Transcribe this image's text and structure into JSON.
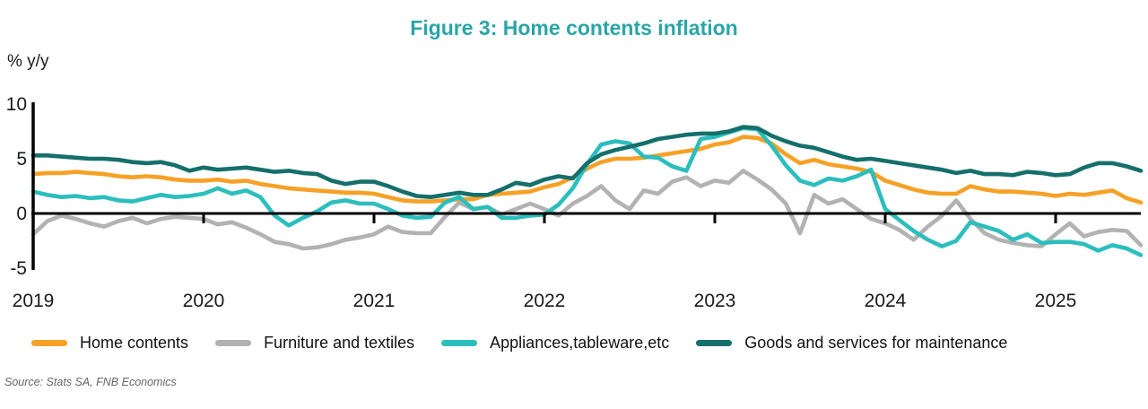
{
  "title": "Figure 3: Home contents inflation",
  "y_axis_label": "% y/y",
  "source": "Source: Stats SA, FNB Economics",
  "colors": {
    "title_teal": "#2AA5A8",
    "axis_black": "#1a1a1a",
    "home_contents_orange": "#F6A126",
    "furniture_gray": "#B2B2B2",
    "appliances_cyan": "#2BBEBD",
    "maintenance_teal": "#156F6B"
  },
  "chart_data": {
    "type": "line",
    "title": "Figure 3: Home contents inflation",
    "xlabel": "",
    "ylabel": "% y/y",
    "ylim": [
      -5,
      10
    ],
    "yticks": [
      10,
      5,
      0,
      -5
    ],
    "xticks": [
      "2019",
      "2020",
      "2021",
      "2022",
      "2023",
      "2024",
      "2025"
    ],
    "x_frequency": "monthly",
    "x_range": "Jan 2019 - Jul 2025",
    "grid": false,
    "legend_position": "bottom",
    "series": [
      {
        "name": "Home contents",
        "color": "#F6A126",
        "values": [
          3.6,
          3.7,
          3.7,
          3.8,
          3.7,
          3.6,
          3.4,
          3.3,
          3.4,
          3.3,
          3.1,
          3.0,
          3.0,
          3.1,
          2.9,
          3.0,
          2.7,
          2.5,
          2.3,
          2.2,
          2.1,
          2.0,
          1.9,
          1.9,
          1.8,
          1.5,
          1.2,
          1.1,
          1.1,
          1.2,
          1.3,
          1.3,
          1.7,
          1.8,
          1.9,
          2.0,
          2.4,
          2.7,
          3.3,
          4.1,
          4.7,
          5.0,
          5.0,
          5.1,
          5.3,
          5.5,
          5.7,
          5.9,
          6.3,
          6.5,
          7.0,
          6.9,
          6.4,
          5.4,
          4.6,
          4.9,
          4.5,
          4.3,
          4.1,
          3.8,
          3.0,
          2.6,
          2.2,
          1.9,
          1.8,
          1.8,
          2.5,
          2.2,
          2.0,
          2.0,
          1.9,
          1.8,
          1.6,
          1.8,
          1.7,
          1.9,
          2.1,
          1.4,
          1.0
        ]
      },
      {
        "name": "Furniture and textiles",
        "color": "#B2B2B2",
        "values": [
          -1.9,
          -0.7,
          -0.2,
          -0.5,
          -0.9,
          -1.2,
          -0.7,
          -0.4,
          -0.9,
          -0.5,
          -0.3,
          -0.4,
          -0.5,
          -1.0,
          -0.8,
          -1.3,
          -1.9,
          -2.6,
          -2.8,
          -3.2,
          -3.1,
          -2.8,
          -2.4,
          -2.2,
          -1.9,
          -1.2,
          -1.7,
          -1.8,
          -1.8,
          -0.3,
          1.0,
          0.4,
          0.6,
          -0.1,
          0.4,
          0.9,
          0.4,
          -0.2,
          0.9,
          1.6,
          2.5,
          1.2,
          0.4,
          2.1,
          1.8,
          2.9,
          3.3,
          2.5,
          3.0,
          2.8,
          3.9,
          3.1,
          2.2,
          0.9,
          -1.8,
          1.7,
          0.9,
          1.3,
          0.4,
          -0.5,
          -0.9,
          -1.5,
          -2.4,
          -1.2,
          -0.2,
          1.2,
          -0.5,
          -1.8,
          -2.4,
          -2.7,
          -2.9,
          -3.0,
          -1.9,
          -0.9,
          -2.1,
          -1.7,
          -1.5,
          -1.6,
          -2.9
        ]
      },
      {
        "name": "Appliances,tableware,etc",
        "color": "#2BBEBD",
        "values": [
          2.0,
          1.7,
          1.5,
          1.6,
          1.4,
          1.5,
          1.2,
          1.1,
          1.4,
          1.7,
          1.5,
          1.6,
          1.8,
          2.3,
          1.8,
          2.1,
          1.5,
          -0.2,
          -1.1,
          -0.4,
          0.2,
          1.0,
          1.2,
          0.9,
          0.9,
          0.4,
          -0.2,
          -0.4,
          -0.3,
          1.0,
          1.5,
          0.4,
          0.6,
          -0.4,
          -0.4,
          -0.2,
          -0.1,
          0.8,
          2.3,
          4.5,
          6.3,
          6.6,
          6.4,
          5.2,
          5.1,
          4.3,
          3.9,
          6.8,
          7.0,
          7.4,
          7.8,
          7.7,
          6.2,
          4.4,
          3.0,
          2.6,
          3.2,
          3.0,
          3.4,
          4.0,
          0.4,
          -0.6,
          -1.6,
          -2.4,
          -3.0,
          -2.5,
          -0.8,
          -1.2,
          -1.6,
          -2.4,
          -1.9,
          -2.7,
          -2.6,
          -2.6,
          -2.8,
          -3.4,
          -2.9,
          -3.2,
          -3.8
        ]
      },
      {
        "name": "Goods and services for maintenance",
        "color": "#156F6B",
        "values": [
          5.3,
          5.3,
          5.2,
          5.1,
          5.0,
          5.0,
          4.9,
          4.7,
          4.6,
          4.7,
          4.4,
          3.9,
          4.2,
          4.0,
          4.1,
          4.2,
          4.0,
          3.8,
          3.9,
          3.7,
          3.6,
          3.0,
          2.7,
          2.9,
          2.9,
          2.5,
          2.0,
          1.6,
          1.5,
          1.7,
          1.9,
          1.7,
          1.7,
          2.2,
          2.8,
          2.6,
          3.1,
          3.4,
          3.2,
          4.6,
          5.4,
          5.8,
          6.1,
          6.4,
          6.8,
          7.0,
          7.2,
          7.3,
          7.3,
          7.5,
          7.9,
          7.8,
          7.1,
          6.6,
          6.2,
          6.0,
          5.6,
          5.2,
          4.9,
          5.0,
          4.8,
          4.6,
          4.4,
          4.2,
          4.0,
          3.7,
          3.9,
          3.6,
          3.6,
          3.5,
          3.8,
          3.7,
          3.5,
          3.6,
          4.2,
          4.6,
          4.6,
          4.3,
          3.9
        ]
      }
    ]
  }
}
